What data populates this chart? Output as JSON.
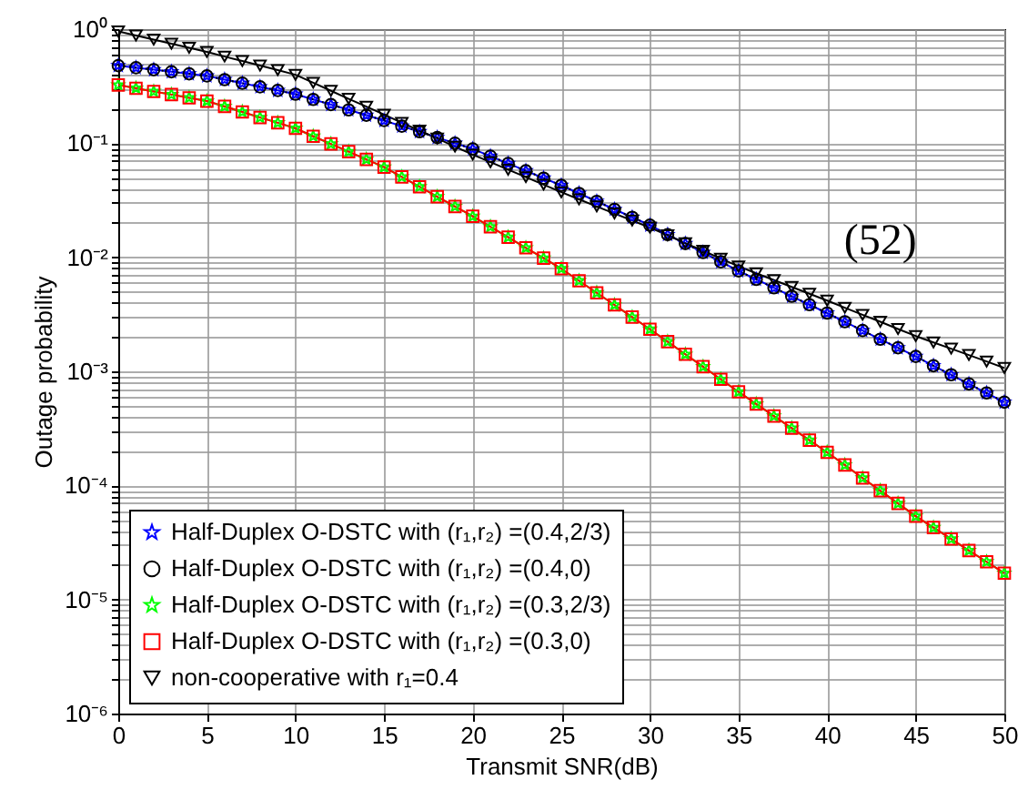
{
  "chart_data": {
    "type": "line",
    "xlabel": "Transmit SNR(dB)",
    "ylabel": "Outage probability",
    "annotations": [
      "(52)"
    ],
    "x": [
      0,
      1,
      2,
      3,
      4,
      5,
      6,
      7,
      8,
      9,
      10,
      11,
      12,
      13,
      14,
      15,
      16,
      17,
      18,
      19,
      20,
      21,
      22,
      23,
      24,
      25,
      26,
      27,
      28,
      29,
      30,
      31,
      32,
      33,
      34,
      35,
      36,
      37,
      38,
      39,
      40,
      41,
      42,
      43,
      44,
      45,
      46,
      47,
      48,
      49,
      50
    ],
    "xlim": [
      0,
      50
    ],
    "xticks": [
      0,
      5,
      10,
      15,
      20,
      25,
      30,
      35,
      40,
      45,
      50
    ],
    "log": true,
    "ylim": [
      1e-06,
      1
    ],
    "yticks": [
      {
        "value": 1e-06,
        "label": "10⁻⁶"
      },
      {
        "value": 2e-06,
        "label": null
      },
      {
        "value": 3e-06,
        "label": null
      },
      {
        "value": 4e-06,
        "label": null
      },
      {
        "value": 5e-06,
        "label": null
      },
      {
        "value": 6e-06,
        "label": null
      },
      {
        "value": 7e-06,
        "label": null
      },
      {
        "value": 8e-06,
        "label": null
      },
      {
        "value": 9e-06,
        "label": null
      },
      {
        "value": 1e-05,
        "label": "10⁻⁵"
      },
      {
        "value": 2e-05,
        "label": null
      },
      {
        "value": 3e-05,
        "label": null
      },
      {
        "value": 4e-05,
        "label": null
      },
      {
        "value": 5e-05,
        "label": null
      },
      {
        "value": 6e-05,
        "label": null
      },
      {
        "value": 7e-05,
        "label": null
      },
      {
        "value": 8e-05,
        "label": null
      },
      {
        "value": 9e-05,
        "label": null
      },
      {
        "value": 0.0001,
        "label": "10⁻⁴"
      },
      {
        "value": 0.0002,
        "label": null
      },
      {
        "value": 0.0003,
        "label": null
      },
      {
        "value": 0.0004,
        "label": null
      },
      {
        "value": 0.0005,
        "label": null
      },
      {
        "value": 0.0006,
        "label": null
      },
      {
        "value": 0.0007,
        "label": null
      },
      {
        "value": 0.0008,
        "label": null
      },
      {
        "value": 0.0009,
        "label": null
      },
      {
        "value": 0.001,
        "label": "10⁻³"
      },
      {
        "value": 0.002,
        "label": null
      },
      {
        "value": 0.003,
        "label": null
      },
      {
        "value": 0.004,
        "label": null
      },
      {
        "value": 0.005,
        "label": null
      },
      {
        "value": 0.006,
        "label": null
      },
      {
        "value": 0.007,
        "label": null
      },
      {
        "value": 0.008,
        "label": null
      },
      {
        "value": 0.009,
        "label": null
      },
      {
        "value": 0.01,
        "label": "10⁻²"
      },
      {
        "value": 0.02,
        "label": null
      },
      {
        "value": 0.03,
        "label": null
      },
      {
        "value": 0.04,
        "label": null
      },
      {
        "value": 0.05,
        "label": null
      },
      {
        "value": 0.06,
        "label": null
      },
      {
        "value": 0.07,
        "label": null
      },
      {
        "value": 0.08,
        "label": null
      },
      {
        "value": 0.09,
        "label": null
      },
      {
        "value": 0.1,
        "label": "10⁻¹"
      },
      {
        "value": 0.2,
        "label": null
      },
      {
        "value": 0.3,
        "label": null
      },
      {
        "value": 0.4,
        "label": null
      },
      {
        "value": 0.5,
        "label": null
      },
      {
        "value": 0.6,
        "label": null
      },
      {
        "value": 0.7,
        "label": null
      },
      {
        "value": 0.8,
        "label": null
      },
      {
        "value": 0.9,
        "label": null
      },
      {
        "value": 1,
        "label": "10⁰"
      }
    ],
    "grid": true,
    "legend": "bottom left",
    "series": [
      {
        "name": "Half-Duplex O-DSTC with (r₁,r₂) =(0.4,2/3)",
        "color": "#0000ff",
        "marker": "star",
        "line_style": "solid",
        "values": [
          0.479,
          0.459,
          0.441,
          0.423,
          0.406,
          0.389,
          0.361,
          0.336,
          0.312,
          0.29,
          0.269,
          0.242,
          0.218,
          0.196,
          0.176,
          0.158,
          0.141,
          0.126,
          0.112,
          0.1,
          0.0891,
          0.0769,
          0.0664,
          0.0573,
          0.0494,
          0.0427,
          0.0363,
          0.0309,
          0.0263,
          0.0224,
          0.0191,
          0.0158,
          0.0132,
          0.011,
          0.00912,
          0.00759,
          0.0064,
          0.0054,
          0.00455,
          0.00384,
          0.00324,
          0.00272,
          0.00228,
          0.00191,
          0.00161,
          0.00135,
          0.00112,
          0.000933,
          0.000776,
          0.000646,
          0.000537
        ]
      },
      {
        "name": "Half-Duplex O-DSTC with (r₁,r₂) =(0.4,0)",
        "color": "#000000",
        "marker": "circle",
        "line_style": "dotted",
        "values": [
          0.479,
          0.459,
          0.441,
          0.423,
          0.406,
          0.389,
          0.361,
          0.336,
          0.312,
          0.29,
          0.269,
          0.242,
          0.218,
          0.196,
          0.176,
          0.158,
          0.141,
          0.126,
          0.112,
          0.1,
          0.0891,
          0.0769,
          0.0664,
          0.0573,
          0.0494,
          0.0427,
          0.0363,
          0.0309,
          0.0263,
          0.0224,
          0.0191,
          0.0158,
          0.0132,
          0.011,
          0.00912,
          0.00759,
          0.0064,
          0.0054,
          0.00455,
          0.00384,
          0.00324,
          0.00272,
          0.00228,
          0.00191,
          0.00161,
          0.00135,
          0.00112,
          0.000933,
          0.000776,
          0.000646,
          0.000537
        ]
      },
      {
        "name": "Half-Duplex O-DSTC with (r₁,r₂) =(0.3,2/3)",
        "color": "#00ff00",
        "marker": "star",
        "line_style": "solid",
        "values": [
          0.324,
          0.303,
          0.284,
          0.267,
          0.25,
          0.234,
          0.21,
          0.188,
          0.168,
          0.151,
          0.135,
          0.115,
          0.0986,
          0.0843,
          0.0721,
          0.0617,
          0.0506,
          0.0415,
          0.034,
          0.0279,
          0.0229,
          0.0185,
          0.015,
          0.0121,
          0.00982,
          0.00794,
          0.00622,
          0.00488,
          0.00382,
          0.00299,
          0.00234,
          0.00182,
          0.00141,
          0.0011,
          0.000851,
          0.000661,
          0.000518,
          0.000406,
          0.000318,
          0.000249,
          0.000195,
          0.000151,
          0.000116,
          8.99e-05,
          6.95e-05,
          5.37e-05,
          4.27e-05,
          3.39e-05,
          2.69e-05,
          2.14e-05,
          1.7e-05
        ]
      },
      {
        "name": "Half-Duplex O-DSTC with (r₁,r₂) =(0.3,0)",
        "color": "#ff0000",
        "marker": "square",
        "line_style": "solid",
        "values": [
          0.324,
          0.303,
          0.284,
          0.267,
          0.25,
          0.234,
          0.21,
          0.188,
          0.168,
          0.151,
          0.135,
          0.115,
          0.0986,
          0.0843,
          0.0721,
          0.0617,
          0.0506,
          0.0415,
          0.034,
          0.0279,
          0.0229,
          0.0185,
          0.015,
          0.0121,
          0.00982,
          0.00794,
          0.00622,
          0.00488,
          0.00382,
          0.00299,
          0.00234,
          0.00182,
          0.00141,
          0.0011,
          0.000851,
          0.000661,
          0.000518,
          0.000406,
          0.000318,
          0.000249,
          0.000195,
          0.000151,
          0.000116,
          8.99e-05,
          6.95e-05,
          5.37e-05,
          4.27e-05,
          3.39e-05,
          2.69e-05,
          2.14e-05,
          1.7e-05
        ]
      },
      {
        "name": "non-cooperative with r₁=0.4",
        "color": "#000000",
        "marker": "triangle",
        "line_style": "solid",
        "values": [
          0.955,
          0.879,
          0.809,
          0.745,
          0.685,
          0.631,
          0.575,
          0.525,
          0.479,
          0.437,
          0.398,
          0.339,
          0.288,
          0.245,
          0.209,
          0.178,
          0.151,
          0.129,
          0.11,
          0.0933,
          0.0794,
          0.0682,
          0.0586,
          0.0504,
          0.0433,
          0.0372,
          0.0322,
          0.0279,
          0.0242,
          0.021,
          0.0182,
          0.0156,
          0.0133,
          0.0114,
          0.00973,
          0.00832,
          0.00724,
          0.00631,
          0.0055,
          0.00479,
          0.00417,
          0.00361,
          0.00313,
          0.00272,
          0.00235,
          0.00204,
          0.00179,
          0.00158,
          0.00139,
          0.00122,
          0.00107
        ]
      }
    ]
  }
}
